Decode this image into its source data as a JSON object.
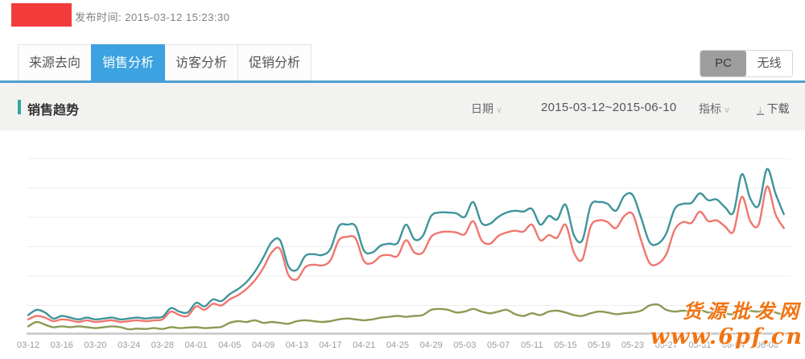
{
  "header": {
    "publish_label": "发布时间:",
    "publish_time": "2015-03-12 15:23:30"
  },
  "tabs": [
    {
      "label": "来源去向",
      "active": false
    },
    {
      "label": "销售分析",
      "active": true
    },
    {
      "label": "访客分析",
      "active": false
    },
    {
      "label": "促销分析",
      "active": false
    }
  ],
  "device_toggle": {
    "pc_label": "PC",
    "wireless_label": "无线",
    "selected": "PC"
  },
  "section": {
    "title": "销售趋势",
    "date_label": "日期",
    "date_range": "2015-03-12~2015-06-10",
    "metric_label": "指标",
    "download_label": "下载"
  },
  "icons": {
    "chevron_down": "∨",
    "download_arrow": "↓"
  },
  "watermark": {
    "line1": "货源批发网",
    "line2": "www.6pf.cn",
    "color": "#F07414"
  },
  "colors": {
    "active_tab_blue": "#3CA2E0",
    "divider_blue": "#4C9FD2",
    "section_accent_teal": "#2FA8A0",
    "logo_red": "#F23C3C",
    "toggle_selected_gray": "#9D9D9D"
  },
  "chart_data": {
    "type": "line",
    "title": "销售趋势",
    "grid": "horizontal",
    "legend": "none visible",
    "ylim": [
      0,
      100
    ],
    "y_units": "relative scale (no y-axis tick labels visible in screenshot)",
    "x_tick_labels": [
      "03-12",
      "03-16",
      "03-20",
      "03-24",
      "03-28",
      "04-01",
      "04-05",
      "04-09",
      "04-13",
      "04-17",
      "04-21",
      "04-25",
      "04-29",
      "05-03",
      "05-07",
      "05-11",
      "05-15",
      "05-19",
      "05-23",
      "05-27",
      "05-31",
      "06-04",
      "06-08"
    ],
    "x": [
      "03-12",
      "03-13",
      "03-14",
      "03-15",
      "03-16",
      "03-17",
      "03-18",
      "03-19",
      "03-20",
      "03-21",
      "03-22",
      "03-23",
      "03-24",
      "03-25",
      "03-26",
      "03-27",
      "03-28",
      "03-29",
      "03-30",
      "03-31",
      "04-01",
      "04-02",
      "04-03",
      "04-04",
      "04-05",
      "04-06",
      "04-07",
      "04-08",
      "04-09",
      "04-10",
      "04-11",
      "04-12",
      "04-13",
      "04-14",
      "04-15",
      "04-16",
      "04-17",
      "04-18",
      "04-19",
      "04-20",
      "04-21",
      "04-22",
      "04-23",
      "04-24",
      "04-25",
      "04-26",
      "04-27",
      "04-28",
      "04-29",
      "04-30",
      "05-01",
      "05-02",
      "05-03",
      "05-04",
      "05-05",
      "05-06",
      "05-07",
      "05-08",
      "05-09",
      "05-10",
      "05-11",
      "05-12",
      "05-13",
      "05-14",
      "05-15",
      "05-16",
      "05-17",
      "05-18",
      "05-19",
      "05-20",
      "05-21",
      "05-22",
      "05-23",
      "05-24",
      "05-25",
      "05-26",
      "05-27",
      "05-28",
      "05-29",
      "05-30",
      "05-31",
      "06-01",
      "06-02",
      "06-03",
      "06-04",
      "06-05",
      "06-06",
      "06-07",
      "06-08",
      "06-09",
      "06-10"
    ],
    "series": [
      {
        "name": "series-teal",
        "color": "#3F949B",
        "values": [
          10,
          13,
          11.5,
          8,
          9.5,
          8.5,
          7.5,
          8.5,
          7.5,
          8,
          8.5,
          7.5,
          8,
          8.5,
          8,
          8.5,
          9,
          14,
          12,
          11.5,
          17,
          15,
          19,
          18,
          22,
          25,
          29,
          35,
          43,
          52,
          53,
          38,
          36,
          44,
          45,
          44.5,
          48,
          61,
          62,
          61,
          47,
          46,
          50,
          51,
          51.5,
          62,
          53.5,
          55.5,
          67,
          69,
          69,
          68.5,
          66.5,
          75,
          63,
          62.5,
          66.5,
          69,
          70,
          69.5,
          71,
          62,
          67,
          65,
          73.5,
          56,
          53,
          73,
          75,
          74,
          70,
          78.5,
          79,
          66,
          52,
          51,
          57,
          71,
          74,
          74.5,
          80,
          76,
          76.5,
          72,
          69,
          91,
          77,
          73,
          94,
          80,
          68
        ]
      },
      {
        "name": "series-red",
        "color": "#F0766E",
        "values": [
          7.5,
          9.5,
          8.5,
          6.5,
          7.5,
          7,
          6,
          7,
          6,
          6.5,
          7,
          6,
          6.5,
          7,
          6.5,
          7,
          7.5,
          12,
          10,
          9.5,
          15,
          13,
          16.5,
          15.5,
          19,
          21.5,
          25,
          30,
          37,
          46,
          48,
          33,
          30.5,
          37.5,
          39,
          38.5,
          41.5,
          53,
          55,
          54,
          41,
          40,
          44,
          44.5,
          44,
          53,
          46,
          46,
          55,
          57.5,
          58,
          57.5,
          56.5,
          64,
          53,
          51,
          55.5,
          57.5,
          58.5,
          58,
          62,
          53,
          56,
          54.5,
          62,
          46,
          42,
          61,
          64.5,
          63.5,
          60,
          67,
          68,
          53,
          40,
          39.5,
          45,
          59,
          63.5,
          63,
          69.5,
          64,
          64.5,
          61,
          58,
          78,
          64,
          62,
          84,
          68,
          60
        ]
      },
      {
        "name": "series-green",
        "color": "#8A9B55",
        "values": [
          3.5,
          6,
          4.5,
          3,
          3.5,
          3,
          3.5,
          3,
          2.5,
          3,
          3.5,
          3,
          1.8,
          2.2,
          2,
          2.5,
          2,
          3,
          2.5,
          2.8,
          3,
          2.5,
          2.8,
          3.2,
          5.5,
          6.5,
          6,
          7,
          5.5,
          6,
          5.5,
          5,
          6.5,
          7,
          6.5,
          6,
          6.5,
          7.5,
          8,
          7.5,
          7,
          7.5,
          8.5,
          9,
          9.5,
          9,
          9.5,
          10,
          13,
          13.5,
          13,
          11.5,
          12,
          13.5,
          12,
          11,
          12,
          13,
          10.5,
          9.5,
          11,
          10,
          12,
          12.5,
          11.5,
          10,
          9.5,
          11,
          12,
          11.5,
          10.5,
          11,
          11.5,
          12.5,
          15.5,
          16,
          13,
          12,
          12.5,
          12,
          13,
          11.5,
          12,
          11,
          10.5,
          13.5,
          12.5,
          12,
          13,
          11.5,
          10
        ]
      }
    ]
  }
}
